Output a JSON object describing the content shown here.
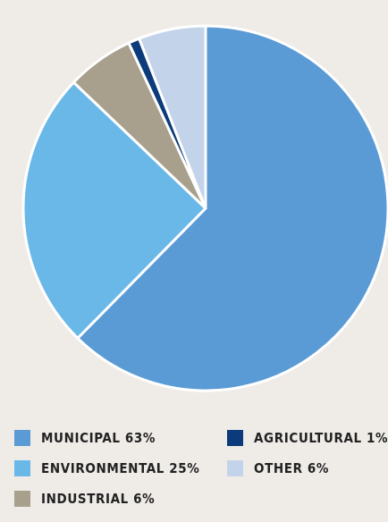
{
  "chart_data": {
    "type": "pie",
    "slices": [
      {
        "label": "MUNICIPAL 63%",
        "value": 63,
        "color": "#5b9bd5"
      },
      {
        "label": "ENVIRONMENTAL 25%",
        "value": 25,
        "color": "#6ab8e8"
      },
      {
        "label": "INDUSTRIAL 6%",
        "value": 6,
        "color": "#a8a08c"
      },
      {
        "label": "AGRICULTURAL 1%",
        "value": 1,
        "color": "#0b3b7a"
      },
      {
        "label": "OTHER 6%",
        "value": 6,
        "color": "#c3d3ea"
      }
    ],
    "legend_position": "bottom"
  }
}
